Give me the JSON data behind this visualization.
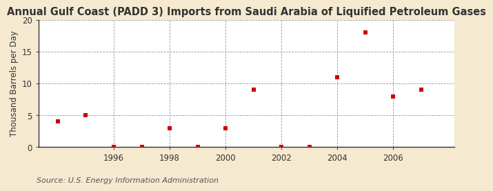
{
  "title": "Annual Gulf Coast (PADD 3) Imports from Saudi Arabia of Liquified Petroleum Gases",
  "ylabel": "Thousand Barrels per Day",
  "source": "Source: U.S. Energy Information Administration",
  "fig_bg_color": "#f5e9d0",
  "plot_bg_color": "#ffffff",
  "years": [
    1994,
    1995,
    1996,
    1997,
    1998,
    1999,
    2000,
    2001,
    2002,
    2003,
    2004,
    2005,
    2006,
    2007
  ],
  "values": [
    4.1,
    5.0,
    0.05,
    0.05,
    3.0,
    0.05,
    3.0,
    9.0,
    0.05,
    0.05,
    11.0,
    18.0,
    8.0,
    9.0
  ],
  "marker_color": "#cc0000",
  "marker": "s",
  "marker_size": 4,
  "xlim": [
    1993.3,
    2008.2
  ],
  "ylim": [
    0,
    20
  ],
  "yticks": [
    0,
    5,
    10,
    15,
    20
  ],
  "xticks": [
    1996,
    1998,
    2000,
    2002,
    2004,
    2006
  ],
  "title_fontsize": 10.5,
  "ylabel_fontsize": 8.5,
  "tick_fontsize": 8.5,
  "source_fontsize": 8,
  "grid_color": "#999999",
  "grid_style": "--"
}
